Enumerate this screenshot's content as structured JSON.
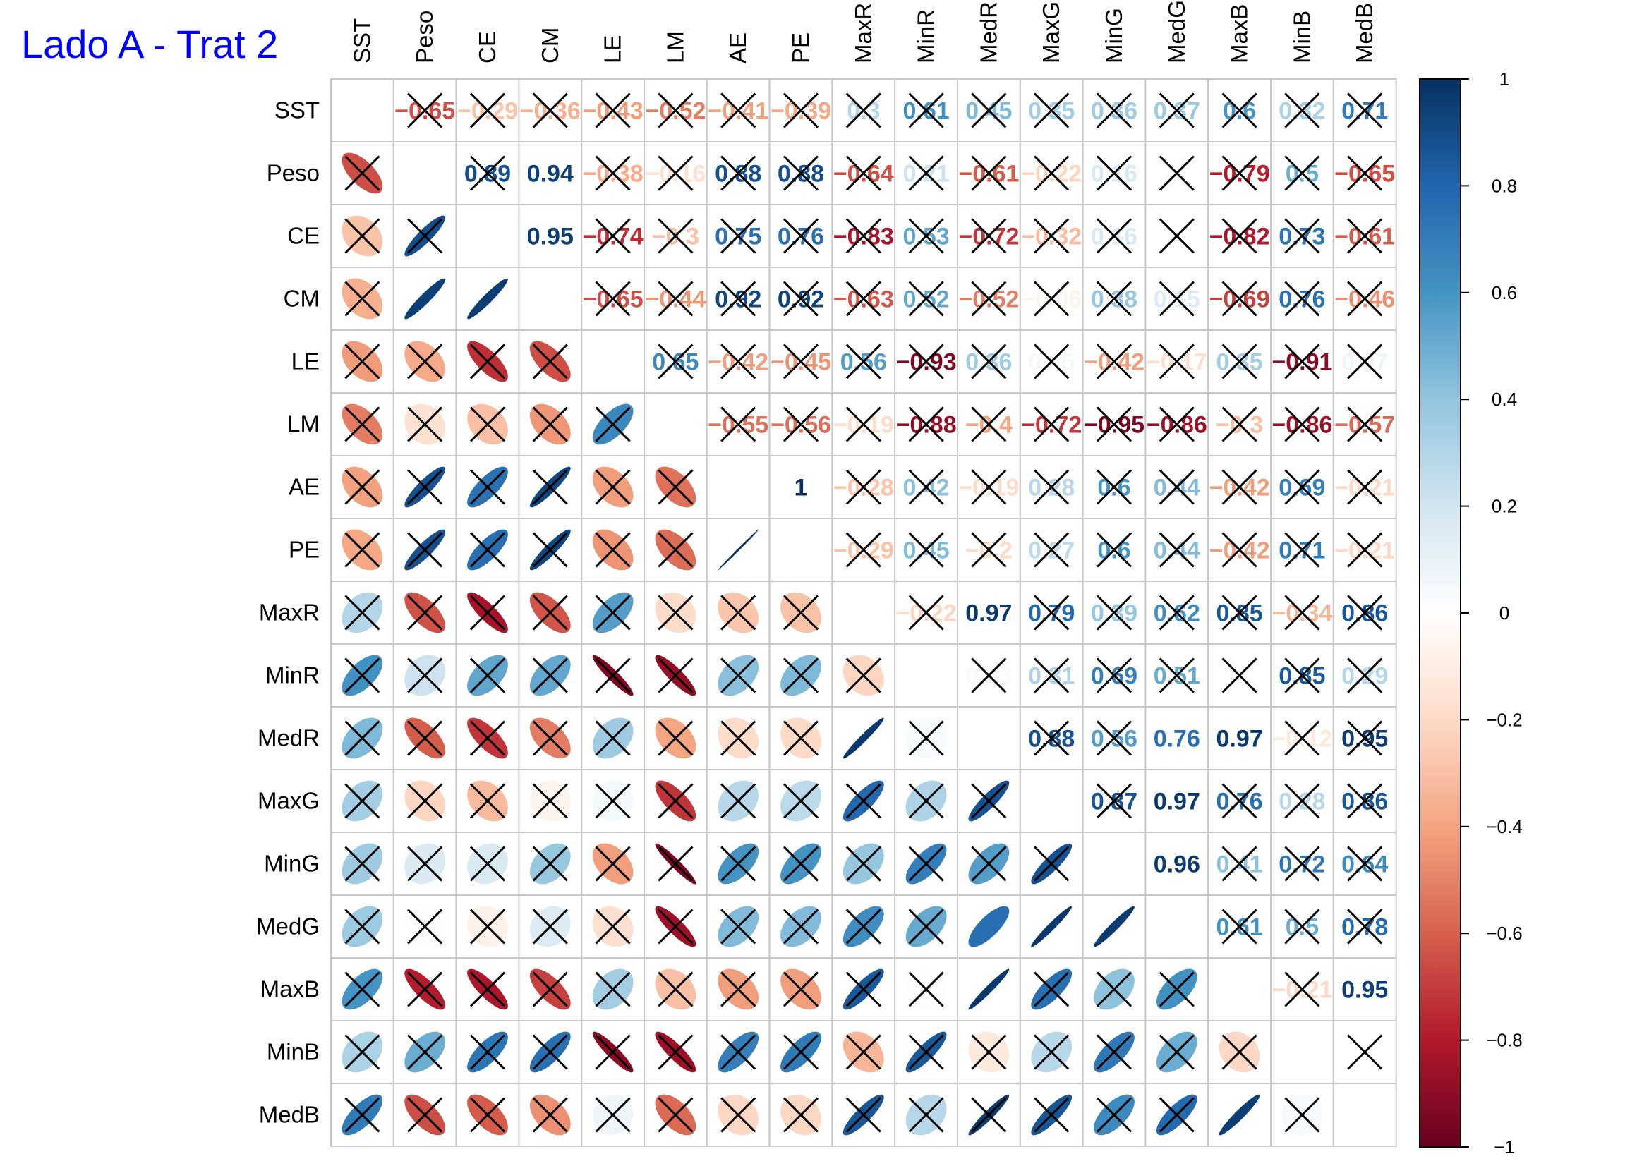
{
  "chart_data": {
    "type": "heatmap",
    "title": "Lado A - Trat 2",
    "variables": [
      "SST",
      "Peso",
      "CE",
      "CM",
      "LE",
      "LM",
      "AE",
      "PE",
      "MaxR",
      "MinR",
      "MedR",
      "MaxG",
      "MinG",
      "MedG",
      "MaxB",
      "MinB",
      "MedB"
    ],
    "matrix": [
      [
        1,
        -0.65,
        -0.29,
        -0.36,
        -0.43,
        -0.52,
        -0.41,
        -0.39,
        0.3,
        0.61,
        0.45,
        0.35,
        0.36,
        0.37,
        0.6,
        0.32,
        0.71
      ],
      [
        -0.65,
        1,
        0.89,
        0.94,
        -0.38,
        -0.16,
        0.88,
        0.88,
        -0.64,
        0.21,
        -0.61,
        -0.22,
        0.16,
        0.01,
        -0.79,
        0.5,
        -0.65
      ],
      [
        -0.29,
        0.89,
        1,
        0.95,
        -0.74,
        -0.3,
        0.75,
        0.76,
        -0.83,
        0.53,
        -0.72,
        -0.32,
        0.16,
        -0.08,
        -0.82,
        0.73,
        -0.61
      ],
      [
        -0.36,
        0.94,
        0.95,
        1,
        -0.65,
        -0.44,
        0.92,
        0.92,
        -0.63,
        0.52,
        -0.52,
        -0.06,
        0.38,
        0.15,
        -0.69,
        0.76,
        -0.46
      ],
      [
        -0.43,
        -0.38,
        -0.74,
        -0.65,
        1,
        0.65,
        -0.42,
        -0.45,
        0.56,
        -0.93,
        0.36,
        0.05,
        -0.42,
        -0.17,
        0.35,
        -0.91,
        0.07
      ],
      [
        -0.52,
        -0.16,
        -0.3,
        -0.44,
        0.65,
        1,
        -0.55,
        -0.56,
        -0.19,
        -0.88,
        -0.4,
        -0.72,
        -0.95,
        -0.86,
        -0.3,
        -0.86,
        -0.57
      ],
      [
        -0.41,
        0.88,
        0.75,
        0.92,
        -0.42,
        -0.55,
        1,
        1,
        -0.28,
        0.42,
        -0.19,
        0.28,
        0.6,
        0.44,
        -0.42,
        0.69,
        -0.21
      ],
      [
        -0.39,
        0.88,
        0.76,
        0.92,
        -0.45,
        -0.56,
        1,
        1,
        -0.29,
        0.45,
        -0.2,
        0.27,
        0.6,
        0.44,
        -0.42,
        0.71,
        -0.21
      ],
      [
        0.3,
        -0.64,
        -0.83,
        -0.63,
        0.56,
        -0.19,
        -0.28,
        -0.29,
        1,
        -0.22,
        0.97,
        0.79,
        0.39,
        0.62,
        0.85,
        -0.34,
        0.86
      ],
      [
        0.61,
        0.21,
        0.53,
        0.52,
        -0.93,
        -0.88,
        0.42,
        0.45,
        -0.22,
        1,
        0.03,
        0.31,
        0.69,
        0.51,
        -0.01,
        0.85,
        0.29
      ],
      [
        0.45,
        -0.61,
        -0.72,
        -0.52,
        0.36,
        -0.4,
        -0.19,
        -0.2,
        0.97,
        0.03,
        1,
        0.88,
        0.56,
        0.76,
        0.97,
        -0.12,
        0.95
      ],
      [
        0.35,
        -0.22,
        -0.32,
        -0.06,
        0.05,
        -0.72,
        0.28,
        0.27,
        0.79,
        0.31,
        0.88,
        1,
        0.87,
        0.97,
        0.76,
        0.28,
        0.86
      ],
      [
        0.36,
        0.16,
        0.16,
        0.38,
        -0.42,
        -0.95,
        0.6,
        0.6,
        0.39,
        0.69,
        0.56,
        0.87,
        1,
        0.96,
        0.41,
        0.72,
        0.64
      ],
      [
        0.37,
        0.01,
        -0.08,
        0.15,
        -0.17,
        -0.86,
        0.44,
        0.44,
        0.62,
        0.51,
        0.76,
        0.97,
        0.96,
        1,
        0.61,
        0.5,
        0.78
      ],
      [
        0.6,
        -0.79,
        -0.82,
        -0.69,
        0.35,
        -0.3,
        -0.42,
        -0.42,
        0.85,
        -0.01,
        0.97,
        0.76,
        0.41,
        0.61,
        1,
        -0.21,
        0.95
      ],
      [
        0.32,
        0.5,
        0.73,
        0.76,
        -0.91,
        -0.86,
        0.69,
        0.71,
        -0.34,
        0.85,
        -0.12,
        0.28,
        0.72,
        0.5,
        -0.21,
        1,
        0.04
      ],
      [
        0.71,
        -0.65,
        -0.61,
        -0.46,
        0.07,
        -0.57,
        -0.21,
        -0.21,
        0.86,
        0.29,
        0.95,
        0.86,
        0.64,
        0.78,
        0.95,
        0.04,
        1
      ]
    ],
    "upper_labels": [
      [
        "",
        "-0.65",
        "-0.29",
        "-0.36",
        "-0.43",
        "-0.52",
        "-0.41",
        "-0.39",
        "0.3",
        "0.61",
        "0.45",
        "0.35",
        "0.36",
        "0.37",
        "0.6",
        "0.32",
        "0.71"
      ],
      [
        "",
        "",
        "0.89",
        "0.94",
        "-0.38",
        "-0.16",
        "0.88",
        "0.88",
        "-0.64",
        "0.21",
        "-0.61",
        "-0.22",
        "0.16",
        "",
        "-0.79",
        "0.5",
        "-0.65"
      ],
      [
        "",
        "",
        "",
        "0.95",
        "-0.74",
        "-0.3",
        "0.75",
        "0.76",
        "-0.83",
        "0.53",
        "-0.72",
        "-0.32",
        "0.16",
        "",
        "-0.82",
        "0.73",
        "-0.61"
      ],
      [
        "",
        "",
        "",
        "",
        "-0.65",
        "-0.44",
        "0.92",
        "0.92",
        "-0.63",
        "0.52",
        "-0.52",
        "-0.06",
        "0.38",
        "0.15",
        "-0.69",
        "0.76",
        "-0.46"
      ],
      [
        "",
        "",
        "",
        "",
        "",
        "0.65",
        "-0.42",
        "-0.45",
        "0.56",
        "-0.93",
        "0.36",
        "0.05",
        "-0.42",
        "-0.17",
        "0.35",
        "-0.91",
        "0.07"
      ],
      [
        "",
        "",
        "",
        "",
        "",
        "",
        "-0.55",
        "-0.56",
        "-0.19",
        "-0.88",
        "-0.4",
        "-0.72",
        "-0.95",
        "-0.86",
        "-0.3",
        "-0.86",
        "-0.57"
      ],
      [
        "",
        "",
        "",
        "",
        "",
        "",
        "",
        "1",
        "-0.28",
        "0.42",
        "-0.19",
        "0.28",
        "0.6",
        "0.44",
        "-0.42",
        "0.69",
        "-0.21"
      ],
      [
        "",
        "",
        "",
        "",
        "",
        "",
        "",
        "",
        "-0.29",
        "0.45",
        "-0.2",
        "0.27",
        "0.6",
        "0.44",
        "-0.42",
        "0.71",
        "-0.21"
      ],
      [
        "",
        "",
        "",
        "",
        "",
        "",
        "",
        "",
        "",
        "-0.22",
        "0.97",
        "0.79",
        "0.39",
        "0.62",
        "0.85",
        "-0.34",
        "0.86"
      ],
      [
        "",
        "",
        "",
        "",
        "",
        "",
        "",
        "",
        "",
        "",
        "0.03",
        "0.31",
        "0.69",
        "0.51",
        "",
        "0.85",
        "0.29"
      ],
      [
        "",
        "",
        "",
        "",
        "",
        "",
        "",
        "",
        "",
        "",
        "",
        "0.88",
        "0.56",
        "0.76",
        "0.97",
        "-0.12",
        "0.95"
      ],
      [
        "",
        "",
        "",
        "",
        "",
        "",
        "",
        "",
        "",
        "",
        "",
        "",
        "0.87",
        "0.97",
        "0.76",
        "0.28",
        "0.86"
      ],
      [
        "",
        "",
        "",
        "",
        "",
        "",
        "",
        "",
        "",
        "",
        "",
        "",
        "",
        "0.96",
        "0.41",
        "0.72",
        "0.64"
      ],
      [
        "",
        "",
        "",
        "",
        "",
        "",
        "",
        "",
        "",
        "",
        "",
        "",
        "",
        "",
        "0.61",
        "0.5",
        "0.78"
      ],
      [
        "",
        "",
        "",
        "",
        "",
        "",
        "",
        "",
        "",
        "",
        "",
        "",
        "",
        "",
        "",
        "-0.21",
        "0.95"
      ],
      [
        "",
        "",
        "",
        "",
        "",
        "",
        "",
        "",
        "",
        "",
        "",
        "",
        "",
        "",
        "",
        "",
        ""
      ],
      [
        "",
        "",
        "",
        "",
        "",
        "",
        "",
        "",
        "",
        "",
        "",
        "",
        "",
        "",
        "",
        "",
        ""
      ]
    ],
    "nonsignificant": [
      [
        0,
        1,
        1,
        1,
        1,
        1,
        1,
        1,
        1,
        1,
        1,
        1,
        1,
        1,
        1,
        1,
        1
      ],
      [
        1,
        0,
        1,
        0,
        1,
        1,
        1,
        1,
        1,
        1,
        1,
        1,
        1,
        1,
        1,
        1,
        1
      ],
      [
        1,
        1,
        0,
        0,
        1,
        1,
        1,
        1,
        1,
        1,
        1,
        1,
        1,
        1,
        1,
        1,
        1
      ],
      [
        1,
        0,
        0,
        0,
        1,
        1,
        1,
        1,
        1,
        1,
        1,
        1,
        1,
        1,
        1,
        1,
        1
      ],
      [
        1,
        1,
        1,
        1,
        0,
        1,
        1,
        1,
        1,
        1,
        1,
        1,
        1,
        1,
        1,
        1,
        1
      ],
      [
        1,
        1,
        1,
        1,
        1,
        0,
        1,
        1,
        1,
        1,
        1,
        1,
        1,
        1,
        1,
        1,
        1
      ],
      [
        1,
        1,
        1,
        1,
        1,
        1,
        0,
        0,
        1,
        1,
        1,
        1,
        1,
        1,
        1,
        1,
        1
      ],
      [
        1,
        1,
        1,
        1,
        1,
        1,
        0,
        0,
        1,
        1,
        1,
        1,
        1,
        1,
        1,
        1,
        1
      ],
      [
        1,
        1,
        1,
        1,
        1,
        1,
        1,
        1,
        0,
        1,
        0,
        1,
        1,
        1,
        1,
        1,
        1
      ],
      [
        1,
        1,
        1,
        1,
        1,
        1,
        1,
        1,
        1,
        0,
        1,
        1,
        1,
        1,
        1,
        1,
        1
      ],
      [
        1,
        1,
        1,
        1,
        1,
        1,
        1,
        1,
        0,
        1,
        0,
        1,
        1,
        0,
        0,
        1,
        1
      ],
      [
        1,
        1,
        1,
        1,
        1,
        1,
        1,
        1,
        1,
        1,
        1,
        0,
        1,
        0,
        1,
        1,
        1
      ],
      [
        1,
        1,
        1,
        1,
        1,
        1,
        1,
        1,
        1,
        1,
        1,
        1,
        0,
        0,
        1,
        1,
        1
      ],
      [
        1,
        1,
        1,
        1,
        1,
        1,
        1,
        1,
        1,
        1,
        0,
        0,
        0,
        0,
        1,
        1,
        1
      ],
      [
        1,
        1,
        1,
        1,
        1,
        1,
        1,
        1,
        1,
        1,
        0,
        1,
        1,
        1,
        0,
        1,
        0
      ],
      [
        1,
        1,
        1,
        1,
        1,
        1,
        1,
        1,
        1,
        1,
        1,
        1,
        1,
        1,
        1,
        0,
        1
      ],
      [
        1,
        1,
        1,
        1,
        1,
        1,
        1,
        1,
        1,
        1,
        1,
        1,
        1,
        1,
        0,
        1,
        0
      ]
    ],
    "colorbar_ticks": [
      "1",
      "0.8",
      "0.6",
      "0.4",
      "0.2",
      "0",
      "−0.2",
      "−0.4",
      "−0.6",
      "−0.8",
      "−1"
    ],
    "colorbar_values": [
      1,
      0.8,
      0.6,
      0.4,
      0.2,
      0,
      -0.2,
      -0.4,
      -0.6,
      -0.8,
      -1
    ],
    "colorbar_range": [
      -1,
      1
    ],
    "lower_method": "ellipse",
    "upper_method": "number",
    "legend_position": "right",
    "palette": [
      "#67001F",
      "#B2182B",
      "#D6604D",
      "#F4A582",
      "#FDDBC7",
      "#FFFFFF",
      "#D1E5F0",
      "#92C5DE",
      "#4393C3",
      "#2166AC",
      "#053061"
    ]
  }
}
